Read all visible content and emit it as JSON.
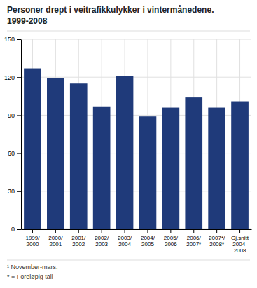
{
  "chart_data": {
    "type": "bar",
    "title": "Personer drept i veitrafikkulykker i vintermånedene.",
    "subtitle": "1999-2008",
    "categories": [
      "1999/\n2000",
      "2000/\n2001",
      "2001/\n2002",
      "2002/\n2003",
      "2003/\n2004",
      "2004/\n2005",
      "2005/\n2006",
      "2006/\n2007*",
      "2007*/\n2008*",
      "Gj.snitt\n2004-\n2008"
    ],
    "values": [
      127,
      119,
      115,
      97,
      121,
      89,
      96,
      104,
      96,
      101
    ],
    "color": "#1F3A7A",
    "ylim": [
      0,
      150
    ],
    "yticks": [
      0,
      30,
      60,
      90,
      120,
      150
    ],
    "grid": true,
    "annotations": [
      "¹ November-mars.",
      "* = Foreløpig tall"
    ]
  }
}
